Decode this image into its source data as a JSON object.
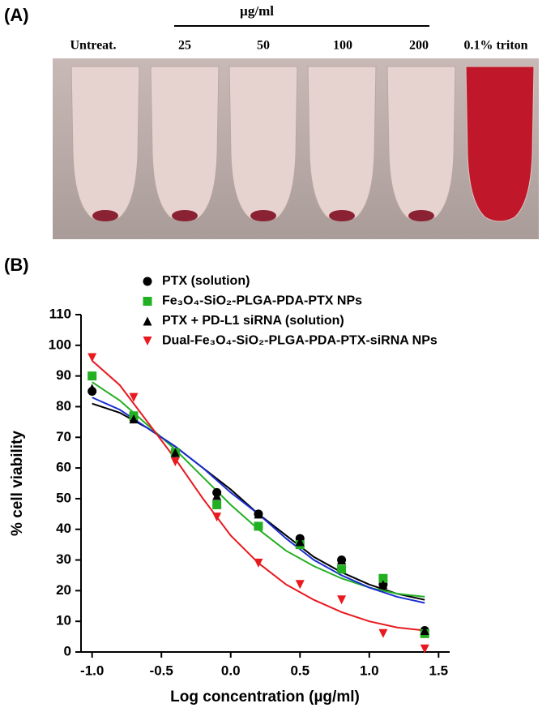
{
  "panel_a": {
    "label": "(A)",
    "unit": "µg/ml",
    "tubes": [
      "Untreat.",
      "25",
      "50",
      "100",
      "200",
      "0.1% triton"
    ]
  },
  "chart_data": {
    "type": "scatter",
    "panel_label": "(B)",
    "xlabel": "Log concentration (µg/ml)",
    "ylabel": "% cell viability",
    "x": [
      -1.0,
      -0.7,
      -0.4,
      -0.1,
      0.2,
      0.5,
      0.8,
      1.1,
      1.4
    ],
    "fit_x": [
      -1.0,
      -0.8,
      -0.6,
      -0.4,
      -0.2,
      0.0,
      0.2,
      0.4,
      0.6,
      0.8,
      1.0,
      1.2,
      1.4
    ],
    "series": [
      {
        "name": "PTX (solution)",
        "color": "#000000",
        "marker": "circle",
        "fit_color": "#000000",
        "values": [
          85,
          76,
          65,
          52,
          45,
          37,
          30,
          22,
          7
        ],
        "fit": [
          81,
          78,
          73,
          67,
          60,
          53,
          45,
          38,
          31,
          26,
          22,
          19,
          17
        ]
      },
      {
        "name": "Fe₃O₄-SiO₂-PLGA-PDA-PTX NPs",
        "color": "#22b022",
        "marker": "square",
        "fit_color": "#22b022",
        "values": [
          90,
          77,
          65,
          48,
          41,
          35,
          27,
          24,
          6
        ],
        "fit": [
          88,
          82,
          74,
          66,
          57,
          48,
          40,
          33,
          28,
          24,
          21,
          19,
          18
        ]
      },
      {
        "name": "PTX + PD-L1 siRNA (solution)",
        "color": "#000000",
        "marker": "triangle-up",
        "fit_color": "#1a2fd0",
        "values": [
          86,
          76,
          65,
          51,
          45,
          36,
          30,
          22,
          7
        ],
        "fit": [
          83,
          79,
          73,
          67,
          60,
          52,
          45,
          37,
          30,
          25,
          21,
          18,
          16
        ]
      },
      {
        "name": "Dual-Fe₃O₄-SiO₂-PLGA-PDA-PTX-siRNA NPs",
        "color": "#e8191f",
        "marker": "triangle-down",
        "fit_color": "#e8191f",
        "values": [
          96,
          83,
          62,
          44,
          29,
          22,
          17,
          6,
          1
        ],
        "fit": [
          95,
          87,
          75,
          63,
          50,
          38,
          29,
          22,
          17,
          13,
          10,
          8,
          7
        ]
      }
    ],
    "xlim": [
      -1.08,
      1.58
    ],
    "ylim": [
      0,
      110
    ],
    "xticks": [
      {
        "value": -1.0,
        "label": "-1.0"
      },
      -0.5,
      {
        "value": 0.0,
        "label": "0.0"
      },
      0.5,
      {
        "value": 1.0,
        "label": "1.0"
      },
      1.5
    ],
    "yticks": [
      0,
      10,
      20,
      30,
      40,
      50,
      60,
      70,
      80,
      90,
      100,
      110
    ]
  }
}
